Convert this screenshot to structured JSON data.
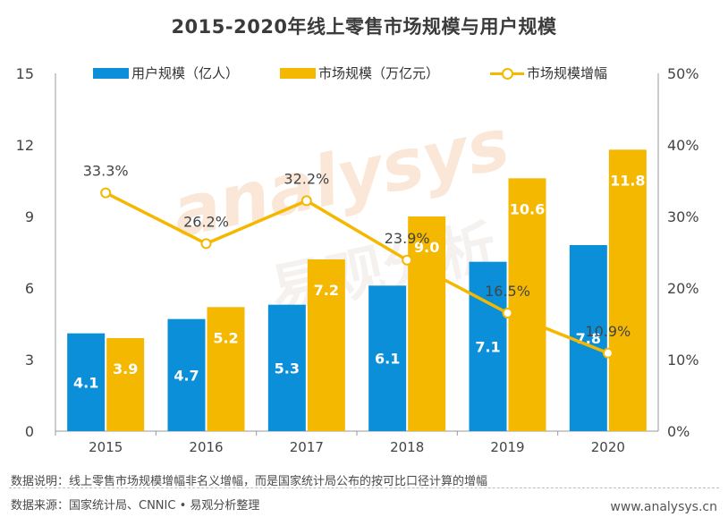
{
  "title": "2015-2020年线上零售市场规模与用户规模",
  "legend": {
    "users": "用户规模（亿人）",
    "market": "市场规模（万亿元）",
    "growth": "市场规模增幅"
  },
  "colors": {
    "users": "#0A8FD8",
    "market": "#F5B800",
    "growth": "#F5B800",
    "axis": "#999999"
  },
  "footer": {
    "note": "数据说明：线上零售市场规模增幅非名义增幅，而是国家统计局公布的按可比口径计算的增幅",
    "source": "数据来源：国家统计局、CNNIC • 易观分析整理",
    "url": "www.analysys.cn"
  },
  "watermark": {
    "logo": "analysys",
    "cn": "易观分析"
  },
  "chart_data": {
    "type": "bar",
    "categories": [
      "2015",
      "2016",
      "2017",
      "2018",
      "2019",
      "2020"
    ],
    "series": [
      {
        "name": "用户规模（亿人）",
        "type": "bar",
        "axis": "left",
        "values": [
          4.1,
          4.7,
          5.3,
          6.1,
          7.1,
          7.8
        ],
        "labels": [
          "4.1",
          "4.7",
          "5.3",
          "6.1",
          "7.1",
          "7.8"
        ]
      },
      {
        "name": "市场规模（万亿元）",
        "type": "bar",
        "axis": "left",
        "values": [
          3.9,
          5.2,
          7.2,
          9.0,
          10.6,
          11.8
        ],
        "labels": [
          "3.9",
          "5.2",
          "7.2",
          "9.0",
          "10.6",
          "11.8"
        ]
      },
      {
        "name": "市场规模增幅",
        "type": "line",
        "axis": "right",
        "values": [
          33.3,
          26.2,
          32.2,
          23.9,
          16.5,
          10.9
        ],
        "labels": [
          "33.3%",
          "26.2%",
          "32.2%",
          "23.9%",
          "16.5%",
          "10.9%"
        ]
      }
    ],
    "ylim": [
      0,
      15
    ],
    "yticks": [
      "0",
      "3",
      "6",
      "9",
      "12",
      "15"
    ],
    "y2lim": [
      0,
      50
    ],
    "y2ticks": [
      "0%",
      "10%",
      "20%",
      "30%",
      "40%",
      "50%"
    ],
    "grid": false,
    "legend_position": "top"
  }
}
